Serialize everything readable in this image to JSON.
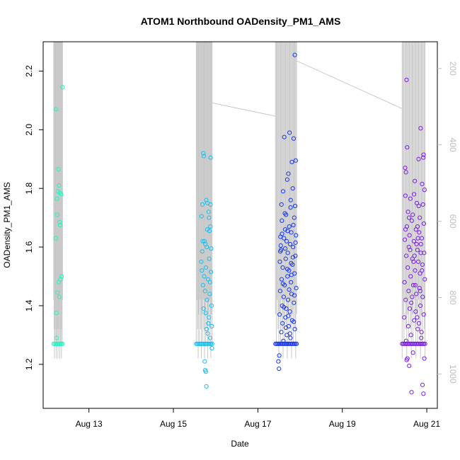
{
  "chart_data": {
    "type": "scatter",
    "title": "ATOM1 Northbound OADensity_PM1_AMS",
    "xlabel": "Date",
    "ylabel": "OADensity_PM1_AMS",
    "xlim": [
      "2023-08-11T22:00",
      "2023-08-21T06:00"
    ],
    "ylim": [
      1.05,
      2.3
    ],
    "x_ticks": [
      {
        "value": "2023-08-13",
        "label": "Aug 13"
      },
      {
        "value": "2023-08-15",
        "label": "Aug 15"
      },
      {
        "value": "2023-08-17",
        "label": "Aug 17"
      },
      {
        "value": "2023-08-19",
        "label": "Aug 19"
      },
      {
        "value": "2023-08-21",
        "label": "Aug 21"
      }
    ],
    "y_ticks": [
      1.2,
      1.4,
      1.6,
      1.8,
      2.0,
      2.2
    ],
    "y2_ticks": [
      200,
      400,
      600,
      800,
      1000
    ],
    "y2_lim": [
      1090,
      130
    ],
    "grid": false,
    "colors": {
      "altitude_line": "#c8c8c8",
      "right_axis": "#bdbdbd",
      "axis": "#000000"
    },
    "series": [
      {
        "start": "2023-08-12T04:00",
        "end": "2023-08-12T09:00",
        "color": "#22f5c2",
        "baseline": 1.27,
        "points": [
          [
            "2023-08-12T05:20",
            2.07
          ],
          [
            "2023-08-12T09:00",
            2.145
          ],
          [
            "2023-08-12T06:40",
            1.865
          ],
          [
            "2023-08-12T07:00",
            1.81
          ],
          [
            "2023-08-12T06:20",
            1.79
          ],
          [
            "2023-08-12T07:30",
            1.785
          ],
          [
            "2023-08-12T08:10",
            1.78
          ],
          [
            "2023-08-12T05:50",
            1.765
          ],
          [
            "2023-08-12T06:00",
            1.71
          ],
          [
            "2023-08-12T07:20",
            1.685
          ],
          [
            "2023-08-12T07:40",
            1.675
          ],
          [
            "2023-08-12T05:10",
            1.63
          ],
          [
            "2023-08-12T08:30",
            1.5
          ],
          [
            "2023-08-12T07:50",
            1.49
          ],
          [
            "2023-08-12T06:50",
            1.48
          ],
          [
            "2023-08-12T06:10",
            1.445
          ],
          [
            "2023-08-12T07:10",
            1.43
          ],
          [
            "2023-08-12T05:30",
            1.375
          ],
          [
            "2023-08-12T05:40",
            1.29
          ]
        ]
      },
      {
        "start": "2023-08-15T13:00",
        "end": "2023-08-15T22:00",
        "color": "#18bff0",
        "baseline": 1.27,
        "points": [
          [
            "2023-08-15T17:00",
            1.92
          ],
          [
            "2023-08-15T17:20",
            1.91
          ],
          [
            "2023-08-15T21:10",
            1.905
          ],
          [
            "2023-08-15T18:40",
            1.76
          ],
          [
            "2023-08-15T19:20",
            1.75
          ],
          [
            "2023-08-15T16:30",
            1.745
          ],
          [
            "2023-08-15T20:00",
            1.72
          ],
          [
            "2023-08-15T16:00",
            1.705
          ],
          [
            "2023-08-15T21:00",
            1.67
          ],
          [
            "2023-08-15T20:30",
            1.655
          ],
          [
            "2023-08-15T17:40",
            1.62
          ],
          [
            "2023-08-15T18:10",
            1.61
          ],
          [
            "2023-08-15T19:00",
            1.6
          ],
          [
            "2023-08-15T21:30",
            1.595
          ],
          [
            "2023-08-15T16:20",
            1.585
          ],
          [
            "2023-08-15T20:20",
            1.56
          ],
          [
            "2023-08-15T15:50",
            1.55
          ],
          [
            "2023-08-15T18:30",
            1.53
          ],
          [
            "2023-08-15T21:20",
            1.515
          ],
          [
            "2023-08-15T17:30",
            1.5
          ],
          [
            "2023-08-15T19:40",
            1.49
          ],
          [
            "2023-08-15T20:50",
            1.48
          ],
          [
            "2023-08-15T16:50",
            1.47
          ],
          [
            "2023-08-15T18:00",
            1.45
          ],
          [
            "2023-08-15T20:40",
            1.44
          ],
          [
            "2023-08-15T19:10",
            1.42
          ],
          [
            "2023-08-15T21:40",
            1.4
          ],
          [
            "2023-08-15T17:10",
            1.39
          ],
          [
            "2023-08-15T18:20",
            1.375
          ],
          [
            "2023-08-15T20:10",
            1.36
          ],
          [
            "2023-08-15T19:50",
            1.34
          ],
          [
            "2023-08-15T21:50",
            1.33
          ],
          [
            "2023-08-15T18:50",
            1.32
          ],
          [
            "2023-08-15T19:30",
            1.305
          ],
          [
            "2023-08-15T20:55",
            1.29
          ],
          [
            "2023-08-15T21:55",
            1.255
          ],
          [
            "2023-08-15T17:50",
            1.21
          ],
          [
            "2023-08-15T18:05",
            1.18
          ],
          [
            "2023-08-15T18:25",
            1.175
          ],
          [
            "2023-08-15T18:45",
            1.125
          ],
          [
            "2023-08-15T16:40",
            1.62
          ],
          [
            "2023-08-15T19:15",
            1.66
          ],
          [
            "2023-08-15T20:15",
            1.7
          ],
          [
            "2023-08-15T21:05",
            1.745
          ],
          [
            "2023-08-15T16:10",
            1.52
          ]
        ]
      },
      {
        "start": "2023-08-17T10:00",
        "end": "2023-08-17T22:00",
        "color": "#1737f0",
        "baseline": 1.27,
        "points": [
          [
            "2023-08-17T21:00",
            2.255
          ],
          [
            "2023-08-17T18:00",
            1.99
          ],
          [
            "2023-08-17T15:00",
            1.975
          ],
          [
            "2023-08-17T20:20",
            1.97
          ],
          [
            "2023-08-17T21:30",
            1.895
          ],
          [
            "2023-08-17T19:20",
            1.89
          ],
          [
            "2023-08-17T17:20",
            1.85
          ],
          [
            "2023-08-17T16:40",
            1.83
          ],
          [
            "2023-08-17T19:50",
            1.8
          ],
          [
            "2023-08-17T14:20",
            1.79
          ],
          [
            "2023-08-17T18:40",
            1.76
          ],
          [
            "2023-08-17T21:10",
            1.74
          ],
          [
            "2023-08-17T16:00",
            1.71
          ],
          [
            "2023-08-17T20:40",
            1.7
          ],
          [
            "2023-08-17T13:40",
            1.69
          ],
          [
            "2023-08-17T17:50",
            1.67
          ],
          [
            "2023-08-17T15:30",
            1.66
          ],
          [
            "2023-08-17T19:00",
            1.65
          ],
          [
            "2023-08-17T21:40",
            1.64
          ],
          [
            "2023-08-17T12:50",
            1.635
          ],
          [
            "2023-08-17T14:50",
            1.63
          ],
          [
            "2023-08-17T16:20",
            1.62
          ],
          [
            "2023-08-17T18:20",
            1.61
          ],
          [
            "2023-08-17T20:00",
            1.6
          ],
          [
            "2023-08-17T13:10",
            1.59
          ],
          [
            "2023-08-17T17:00",
            1.58
          ],
          [
            "2023-08-17T21:20",
            1.57
          ],
          [
            "2023-08-17T15:50",
            1.56
          ],
          [
            "2023-08-17T12:30",
            1.55
          ],
          [
            "2023-08-17T19:40",
            1.54
          ],
          [
            "2023-08-17T14:10",
            1.53
          ],
          [
            "2023-08-17T17:40",
            1.52
          ],
          [
            "2023-08-17T20:50",
            1.51
          ],
          [
            "2023-08-17T16:50",
            1.5
          ],
          [
            "2023-08-17T13:30",
            1.49
          ],
          [
            "2023-08-17T18:50",
            1.48
          ],
          [
            "2023-08-17T15:10",
            1.47
          ],
          [
            "2023-08-17T21:50",
            1.46
          ],
          [
            "2023-08-17T12:40",
            1.45
          ],
          [
            "2023-08-17T19:10",
            1.44
          ],
          [
            "2023-08-17T14:40",
            1.43
          ],
          [
            "2023-08-17T17:10",
            1.42
          ],
          [
            "2023-08-17T20:30",
            1.41
          ],
          [
            "2023-08-17T13:50",
            1.4
          ],
          [
            "2023-08-17T16:10",
            1.39
          ],
          [
            "2023-08-17T18:10",
            1.38
          ],
          [
            "2023-08-17T12:20",
            1.37
          ],
          [
            "2023-08-17T15:40",
            1.36
          ],
          [
            "2023-08-17T19:30",
            1.35
          ],
          [
            "2023-08-17T14:00",
            1.34
          ],
          [
            "2023-08-17T17:30",
            1.33
          ],
          [
            "2023-08-17T21:00",
            1.32
          ],
          [
            "2023-08-17T13:20",
            1.31
          ],
          [
            "2023-08-17T16:30",
            1.3
          ],
          [
            "2023-08-17T18:30",
            1.29
          ],
          [
            "2023-08-17T14:30",
            1.28
          ],
          [
            "2023-08-17T12:10",
            1.23
          ],
          [
            "2023-08-17T11:40",
            1.21
          ],
          [
            "2023-08-17T12:00",
            1.185
          ],
          [
            "2023-08-17T15:20",
            1.715
          ],
          [
            "2023-08-17T18:35",
            1.735
          ],
          [
            "2023-08-17T20:10",
            1.675
          ],
          [
            "2023-08-17T13:00",
            1.605
          ],
          [
            "2023-08-17T16:45",
            1.525
          ],
          [
            "2023-08-17T19:55",
            1.565
          ],
          [
            "2023-08-17T14:15",
            1.475
          ],
          [
            "2023-08-17T17:45",
            1.455
          ],
          [
            "2023-08-17T20:45",
            1.435
          ],
          [
            "2023-08-17T13:45",
            1.645
          ],
          [
            "2023-08-17T15:35",
            1.595
          ],
          [
            "2023-08-17T18:55",
            1.545
          ],
          [
            "2023-08-17T21:25",
            1.615
          ],
          [
            "2023-08-17T12:45",
            1.585
          ],
          [
            "2023-08-17T16:55",
            1.655
          ],
          [
            "2023-08-17T19:05",
            1.505
          ],
          [
            "2023-08-17T14:45",
            1.395
          ],
          [
            "2023-08-17T17:15",
            1.365
          ],
          [
            "2023-08-17T20:25",
            1.345
          ],
          [
            "2023-08-17T15:55",
            1.325
          ],
          [
            "2023-08-17T18:15",
            1.305
          ],
          [
            "2023-08-17T13:25",
            1.745
          ]
        ]
      },
      {
        "start": "2023-08-20T10:00",
        "end": "2023-08-20T23:00",
        "color": "#7b1fe6",
        "baseline": 1.27,
        "points": [
          [
            "2023-08-20T12:30",
            2.17
          ],
          [
            "2023-08-20T20:30",
            2.005
          ],
          [
            "2023-08-20T12:50",
            1.94
          ],
          [
            "2023-08-20T22:10",
            1.915
          ],
          [
            "2023-08-20T22:00",
            1.905
          ],
          [
            "2023-08-20T19:20",
            1.9
          ],
          [
            "2023-08-20T11:40",
            1.87
          ],
          [
            "2023-08-20T12:10",
            1.855
          ],
          [
            "2023-08-20T17:10",
            1.825
          ],
          [
            "2023-08-20T21:20",
            1.815
          ],
          [
            "2023-08-20T22:40",
            1.795
          ],
          [
            "2023-08-20T11:50",
            1.775
          ],
          [
            "2023-08-20T14:40",
            1.765
          ],
          [
            "2023-08-20T18:20",
            1.75
          ],
          [
            "2023-08-20T21:50",
            1.745
          ],
          [
            "2023-08-20T13:20",
            1.72
          ],
          [
            "2023-08-20T16:00",
            1.71
          ],
          [
            "2023-08-20T20:00",
            1.7
          ],
          [
            "2023-08-20T15:30",
            1.69
          ],
          [
            "2023-08-20T22:20",
            1.68
          ],
          [
            "2023-08-20T12:40",
            1.67
          ],
          [
            "2023-08-20T17:50",
            1.66
          ],
          [
            "2023-08-20T19:40",
            1.65
          ],
          [
            "2023-08-20T14:10",
            1.64
          ],
          [
            "2023-08-20T21:10",
            1.63
          ],
          [
            "2023-08-20T11:30",
            1.625
          ],
          [
            "2023-08-20T16:40",
            1.62
          ],
          [
            "2023-08-20T20:40",
            1.61
          ],
          [
            "2023-08-20T13:50",
            1.6
          ],
          [
            "2023-08-20T18:40",
            1.59
          ],
          [
            "2023-08-20T22:30",
            1.58
          ],
          [
            "2023-08-20T12:20",
            1.57
          ],
          [
            "2023-08-20T15:50",
            1.56
          ],
          [
            "2023-08-20T19:10",
            1.55
          ],
          [
            "2023-08-20T21:30",
            1.54
          ],
          [
            "2023-08-20T13:10",
            1.53
          ],
          [
            "2023-08-20T17:20",
            1.52
          ],
          [
            "2023-08-20T20:10",
            1.51
          ],
          [
            "2023-08-20T14:50",
            1.5
          ],
          [
            "2023-08-20T22:50",
            1.49
          ],
          [
            "2023-08-20T11:20",
            1.48
          ],
          [
            "2023-08-20T16:20",
            1.47
          ],
          [
            "2023-08-20T19:50",
            1.46
          ],
          [
            "2023-08-20T13:40",
            1.45
          ],
          [
            "2023-08-20T18:00",
            1.44
          ],
          [
            "2023-08-20T21:40",
            1.43
          ],
          [
            "2023-08-20T12:00",
            1.42
          ],
          [
            "2023-08-20T15:10",
            1.41
          ],
          [
            "2023-08-20T20:20",
            1.4
          ],
          [
            "2023-08-20T14:20",
            1.39
          ],
          [
            "2023-08-20T17:40",
            1.38
          ],
          [
            "2023-08-20T22:15",
            1.37
          ],
          [
            "2023-08-20T11:10",
            1.36
          ],
          [
            "2023-08-20T16:50",
            1.35
          ],
          [
            "2023-08-20T19:30",
            1.34
          ],
          [
            "2023-08-20T13:30",
            1.33
          ],
          [
            "2023-08-20T18:50",
            1.32
          ],
          [
            "2023-08-20T21:00",
            1.31
          ],
          [
            "2023-08-20T15:00",
            1.3
          ],
          [
            "2023-08-20T20:50",
            1.29
          ],
          [
            "2023-08-20T12:15",
            1.28
          ],
          [
            "2023-08-20T16:10",
            1.24
          ],
          [
            "2023-08-20T13:00",
            1.22
          ],
          [
            "2023-08-20T12:35",
            1.215
          ],
          [
            "2023-08-20T22:35",
            1.22
          ],
          [
            "2023-08-20T14:00",
            1.195
          ],
          [
            "2023-08-20T21:35",
            1.13
          ],
          [
            "2023-08-20T15:20",
            1.105
          ],
          [
            "2023-08-20T22:05",
            1.1
          ],
          [
            "2023-08-20T17:00",
            1.57
          ],
          [
            "2023-08-20T18:10",
            1.61
          ],
          [
            "2023-08-20T19:00",
            1.63
          ],
          [
            "2023-08-20T17:30",
            1.47
          ],
          [
            "2023-08-20T16:30",
            1.55
          ],
          [
            "2023-08-20T14:30",
            1.59
          ],
          [
            "2023-08-20T15:40",
            1.43
          ],
          [
            "2023-08-20T18:30",
            1.36
          ],
          [
            "2023-08-20T20:15",
            1.45
          ],
          [
            "2023-08-20T21:15",
            1.52
          ],
          [
            "2023-08-20T11:55",
            1.66
          ],
          [
            "2023-08-20T13:55",
            1.7
          ],
          [
            "2023-08-20T19:25",
            1.74
          ],
          [
            "2023-08-20T16:45",
            1.78
          ],
          [
            "2023-08-20T18:45",
            1.67
          ],
          [
            "2023-08-20T20:35",
            1.58
          ]
        ]
      }
    ],
    "altitude_connectors": [
      {
        "from": "2023-08-12T09:00",
        "to": "2023-08-12T09:00"
      },
      {
        "from": "2023-08-15T22:00",
        "to": "2023-08-17T10:00"
      },
      {
        "from": "2023-08-17T22:00",
        "to": "2023-08-20T10:00"
      }
    ]
  }
}
